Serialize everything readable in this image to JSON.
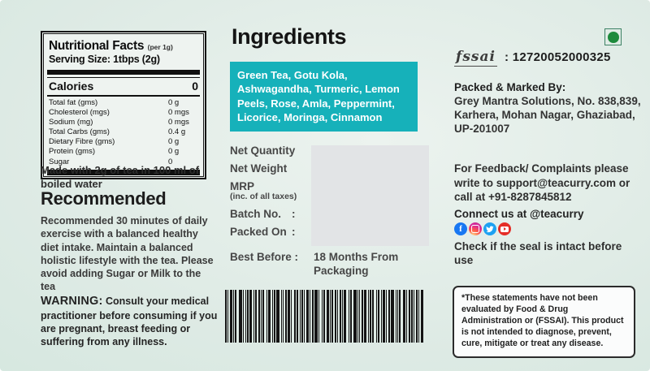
{
  "colors": {
    "ingredients_box": "#16b1ba",
    "veg_symbol_green": "#1d8a3c",
    "value_box_gray": "#e2e4e6",
    "background_mint": "#d6e8e1"
  },
  "nutrition": {
    "title": "Nutritional Facts",
    "title_note": "(per 1g)",
    "serving": "Serving Size: 1tbps (2g)",
    "calories_label": "Calories",
    "calories_value": "0",
    "rows": [
      {
        "label": "Total fat (gms)",
        "value": "0 g"
      },
      {
        "label": "Cholesterol (mgs)",
        "value": "0 mgs"
      },
      {
        "label": "Sodium (mg)",
        "value": "0 mgs"
      },
      {
        "label": "Total Carbs (gms)",
        "value": "0.4 g"
      },
      {
        "label": "Dietary Fibre (gms)",
        "value": "0 g"
      },
      {
        "label": "Protein (gms)",
        "value": "0 g"
      },
      {
        "label": "Sugar",
        "value": "0"
      }
    ]
  },
  "left": {
    "made_with": "Made with 2g of tea in 100 ml of boiled water",
    "recommended_title": "Recommended",
    "recommended_text": "Recommended 30 minutes of daily exercise with a balanced healthy diet intake. Maintain a balanced holistic lifestyle with the tea. Please avoid adding Sugar or Milk to the tea",
    "warning_label": "WARNING:",
    "warning_text": " Consult your medical practitioner before consuming if you are pregnant, breast feeding or suffering from any illness."
  },
  "middle": {
    "ingredients_title": "Ingredients",
    "ingredients_list": "Green Tea, Gotu Kola, Ashwagandha, Turmeric, Lemon Peels, Rose, Amla, Peppermint, Licorice, Moringa, Cinnamon",
    "fields": [
      {
        "label": "Net Quantity",
        "sub": "",
        "colon": ""
      },
      {
        "label": "Net Weight",
        "sub": "",
        "colon": ""
      },
      {
        "label": "MRP",
        "sub": "(inc. of all taxes)",
        "colon": ""
      },
      {
        "label": "Batch No.",
        "sub": "",
        "colon": ":"
      },
      {
        "label": "Packed On",
        "sub": "",
        "colon": ":"
      }
    ],
    "best_before_label": "Best Before :",
    "best_before_value": "18 Months From Packaging"
  },
  "right": {
    "fssai_logo": "fssai",
    "fssai_number": ": 12720052000325",
    "packed_by_label": "Packed & Marked By:",
    "packed_by_address": "Grey Mantra Solutions, No. 838,839, Karhera, Mohan Nagar, Ghaziabad, UP-201007",
    "feedback_text": "For Feedback/ Complaints please write to support@teacurry.com or call at +91-8287845812",
    "connect_text": "Connect us at @teacurry",
    "social_icons": [
      "facebook",
      "instagram",
      "twitter",
      "youtube"
    ],
    "facebook_glyph": "f",
    "seal_text": "Check if the seal is intact before use",
    "disclaimer": "*These statements have not been evaluated by Food & Drug Administration or (FSSAI). This product is not intended to diagnose, prevent, cure, mitigate or treat any disease."
  }
}
